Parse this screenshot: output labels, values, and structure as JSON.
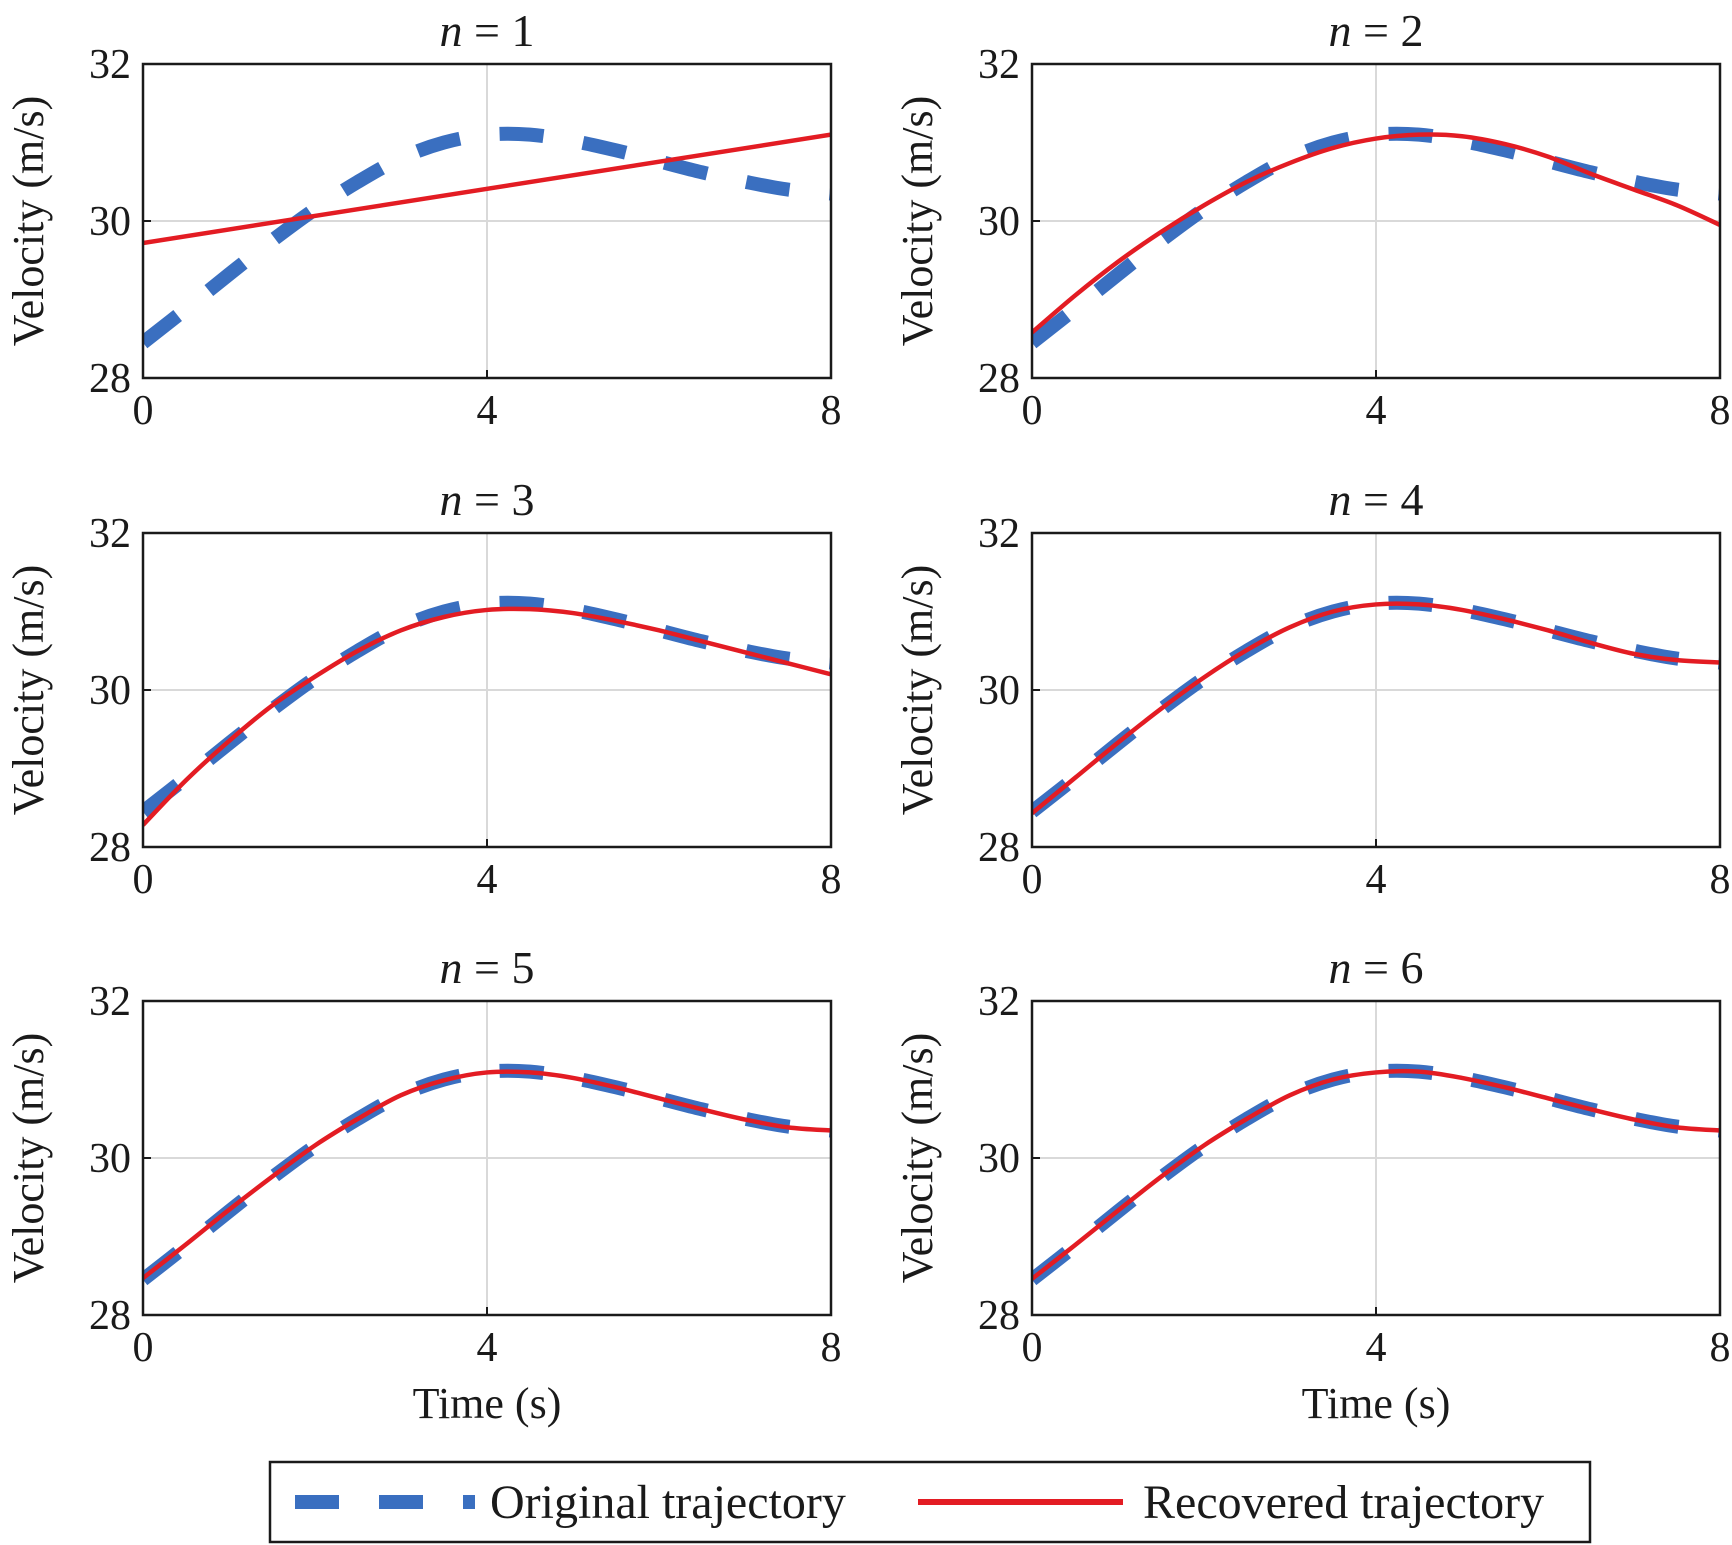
{
  "chart_data": {
    "type": "line",
    "panels": [
      {
        "title": "n = 1",
        "xlabel": "",
        "ylabel": "Velocity (m/s)",
        "xlim": [
          0,
          8
        ],
        "ylim": [
          28,
          32
        ],
        "xticks": [
          "0",
          "4",
          "8"
        ],
        "yticks": [
          "28",
          "30",
          "32"
        ],
        "series": [
          {
            "name": "Original trajectory",
            "x": [
              0,
              0.5,
              1,
              1.5,
              2,
              2.5,
              3,
              3.5,
              4,
              4.5,
              5,
              5.5,
              6,
              6.5,
              7,
              7.5,
              8
            ],
            "y": [
              28.45,
              28.88,
              29.32,
              29.75,
              30.15,
              30.5,
              30.8,
              31.0,
              31.1,
              31.1,
              31.02,
              30.9,
              30.76,
              30.62,
              30.5,
              30.4,
              30.35
            ]
          },
          {
            "name": "Recovered trajectory",
            "x": [
              0,
              8
            ],
            "y": [
              29.72,
              31.1
            ]
          }
        ]
      },
      {
        "title": "n = 2",
        "xlabel": "",
        "ylabel": "Velocity (m/s)",
        "xlim": [
          0,
          8
        ],
        "ylim": [
          28,
          32
        ],
        "xticks": [
          "0",
          "4",
          "8"
        ],
        "yticks": [
          "28",
          "30",
          "32"
        ],
        "series": [
          {
            "name": "Original trajectory",
            "x": [
              0,
              0.5,
              1,
              1.5,
              2,
              2.5,
              3,
              3.5,
              4,
              4.5,
              5,
              5.5,
              6,
              6.5,
              7,
              7.5,
              8
            ],
            "y": [
              28.45,
              28.88,
              29.32,
              29.75,
              30.15,
              30.5,
              30.8,
              31.0,
              31.1,
              31.1,
              31.02,
              30.9,
              30.76,
              30.62,
              30.5,
              30.4,
              30.35
            ]
          },
          {
            "name": "Recovered trajectory",
            "x": [
              0,
              0.5,
              1,
              1.5,
              2,
              2.5,
              3,
              3.5,
              4,
              4.5,
              5,
              5.5,
              6,
              6.5,
              7,
              7.5,
              8
            ],
            "y": [
              28.58,
              29.05,
              29.48,
              29.86,
              30.2,
              30.5,
              30.74,
              30.93,
              31.05,
              31.1,
              31.08,
              30.98,
              30.82,
              30.6,
              30.4,
              30.2,
              29.95
            ]
          }
        ]
      },
      {
        "title": "n = 3",
        "xlabel": "",
        "ylabel": "Velocity (m/s)",
        "xlim": [
          0,
          8
        ],
        "ylim": [
          28,
          32
        ],
        "xticks": [
          "0",
          "4",
          "8"
        ],
        "yticks": [
          "28",
          "30",
          "32"
        ],
        "series": [
          {
            "name": "Original trajectory",
            "x": [
              0,
              0.5,
              1,
              1.5,
              2,
              2.5,
              3,
              3.5,
              4,
              4.5,
              5,
              5.5,
              6,
              6.5,
              7,
              7.5,
              8
            ],
            "y": [
              28.45,
              28.88,
              29.32,
              29.75,
              30.15,
              30.5,
              30.8,
              31.0,
              31.1,
              31.1,
              31.02,
              30.9,
              30.76,
              30.62,
              30.5,
              30.4,
              30.35
            ]
          },
          {
            "name": "Recovered trajectory",
            "x": [
              0,
              0.5,
              1,
              1.5,
              2,
              2.5,
              3,
              3.5,
              4,
              4.5,
              5,
              5.5,
              6,
              6.5,
              7,
              7.5,
              8
            ],
            "y": [
              28.28,
              28.85,
              29.35,
              29.8,
              30.17,
              30.5,
              30.76,
              30.93,
              31.02,
              31.03,
              30.98,
              30.88,
              30.76,
              30.62,
              30.48,
              30.34,
              30.2
            ]
          }
        ]
      },
      {
        "title": "n = 4",
        "xlabel": "",
        "ylabel": "Velocity (m/s)",
        "xlim": [
          0,
          8
        ],
        "ylim": [
          28,
          32
        ],
        "xticks": [
          "0",
          "4",
          "8"
        ],
        "yticks": [
          "28",
          "30",
          "32"
        ],
        "series": [
          {
            "name": "Original trajectory",
            "x": [
              0,
              0.5,
              1,
              1.5,
              2,
              2.5,
              3,
              3.5,
              4,
              4.5,
              5,
              5.5,
              6,
              6.5,
              7,
              7.5,
              8
            ],
            "y": [
              28.45,
              28.88,
              29.32,
              29.75,
              30.15,
              30.5,
              30.8,
              31.0,
              31.1,
              31.1,
              31.02,
              30.9,
              30.76,
              30.62,
              30.5,
              30.4,
              30.35
            ]
          },
          {
            "name": "Recovered trajectory",
            "x": [
              0,
              0.5,
              1,
              1.5,
              2,
              2.5,
              3,
              3.5,
              4,
              4.5,
              5,
              5.5,
              6,
              6.5,
              7,
              7.5,
              8
            ],
            "y": [
              28.43,
              28.88,
              29.33,
              29.76,
              30.16,
              30.51,
              30.8,
              31.0,
              31.09,
              31.09,
              31.02,
              30.9,
              30.76,
              30.6,
              30.46,
              30.38,
              30.35
            ]
          }
        ]
      },
      {
        "title": "n = 5",
        "xlabel": "Time (s)",
        "ylabel": "Velocity (m/s)",
        "xlim": [
          0,
          8
        ],
        "ylim": [
          28,
          32
        ],
        "xticks": [
          "0",
          "4",
          "8"
        ],
        "yticks": [
          "28",
          "30",
          "32"
        ],
        "series": [
          {
            "name": "Original trajectory",
            "x": [
              0,
              0.5,
              1,
              1.5,
              2,
              2.5,
              3,
              3.5,
              4,
              4.5,
              5,
              5.5,
              6,
              6.5,
              7,
              7.5,
              8
            ],
            "y": [
              28.45,
              28.88,
              29.32,
              29.75,
              30.15,
              30.5,
              30.8,
              31.0,
              31.1,
              31.1,
              31.02,
              30.9,
              30.76,
              30.62,
              30.5,
              30.4,
              30.35
            ]
          },
          {
            "name": "Recovered trajectory",
            "x": [
              0,
              0.5,
              1,
              1.5,
              2,
              2.5,
              3,
              3.5,
              4,
              4.5,
              5,
              5.5,
              6,
              6.5,
              7,
              7.5,
              8
            ],
            "y": [
              28.47,
              28.9,
              29.34,
              29.76,
              30.16,
              30.5,
              30.8,
              30.99,
              31.09,
              31.09,
              31.02,
              30.9,
              30.76,
              30.62,
              30.49,
              30.39,
              30.35
            ]
          }
        ]
      },
      {
        "title": "n = 6",
        "xlabel": "Time (s)",
        "ylabel": "Velocity (m/s)",
        "xlim": [
          0,
          8
        ],
        "ylim": [
          28,
          32
        ],
        "xticks": [
          "0",
          "4",
          "8"
        ],
        "yticks": [
          "28",
          "30",
          "32"
        ],
        "series": [
          {
            "name": "Original trajectory",
            "x": [
              0,
              0.5,
              1,
              1.5,
              2,
              2.5,
              3,
              3.5,
              4,
              4.5,
              5,
              5.5,
              6,
              6.5,
              7,
              7.5,
              8
            ],
            "y": [
              28.45,
              28.88,
              29.32,
              29.75,
              30.15,
              30.5,
              30.8,
              31.0,
              31.1,
              31.1,
              31.02,
              30.9,
              30.76,
              30.62,
              30.5,
              30.4,
              30.35
            ]
          },
          {
            "name": "Recovered trajectory",
            "x": [
              0,
              0.5,
              1,
              1.5,
              2,
              2.5,
              3,
              3.5,
              4,
              4.5,
              5,
              5.5,
              6,
              6.5,
              7,
              7.5,
              8
            ],
            "y": [
              28.46,
              28.89,
              29.33,
              29.76,
              30.16,
              30.5,
              30.8,
              31.0,
              31.09,
              31.1,
              31.02,
              30.9,
              30.76,
              30.62,
              30.49,
              30.39,
              30.35
            ]
          }
        ]
      }
    ],
    "grid": true,
    "legend": {
      "placement": "bottom-center",
      "entries": [
        "Original trajectory",
        "Recovered trajectory"
      ]
    },
    "colors": {
      "original": "#3a6fc0",
      "recovered": "#e31c23"
    }
  }
}
